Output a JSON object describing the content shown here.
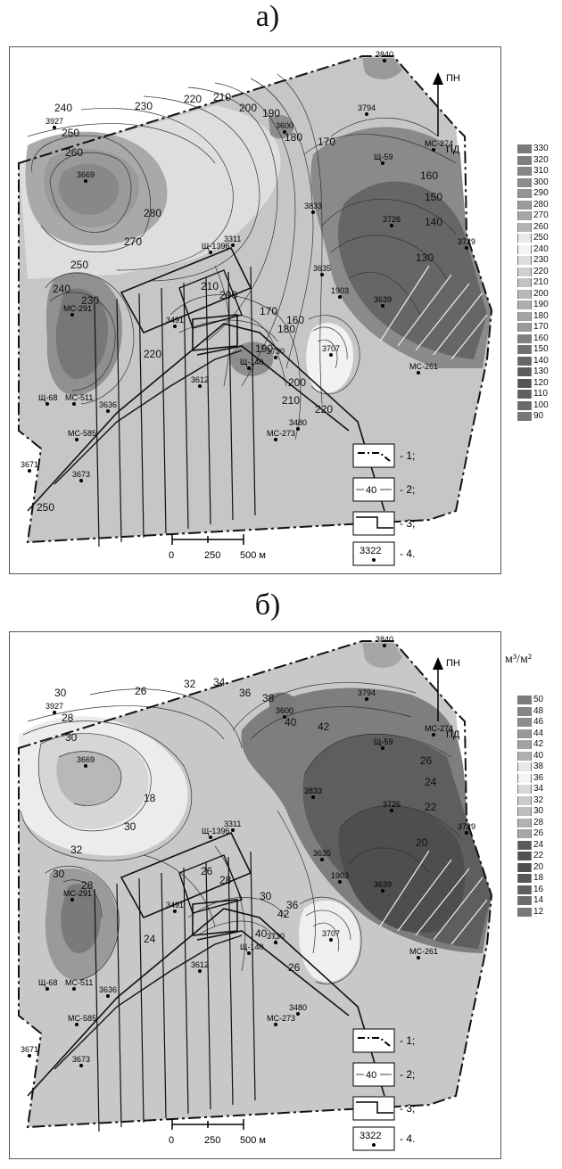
{
  "maps": [
    {
      "heading": "а)",
      "north": "ПН",
      "south": "ПД",
      "scale_bar": {
        "ticks": [
          "0",
          "250",
          "500 м"
        ]
      },
      "legend": [
        {
          "sample": "",
          "text": "- 1;"
        },
        {
          "sample": "40",
          "text": "- 2;"
        },
        {
          "sample": "",
          "text": "- 3;"
        },
        {
          "sample": "3322",
          "text": "- 4."
        }
      ],
      "wells": [
        "3840",
        "3794",
        "МС-274",
        "3927",
        "3600",
        "Щ-59",
        "3669",
        "3833",
        "3726",
        "3729",
        "Щ-1396",
        "3311",
        "3635",
        "1903",
        "3639",
        "МС-291",
        "3491",
        "3707",
        "3730",
        "Щ-140",
        "3612",
        "МС-261",
        "Щ-68",
        "МС-511",
        "3636",
        "3480",
        "МС-585",
        "МС-273",
        "3671",
        "3673"
      ],
      "contour_labels": [
        "240",
        "250",
        "260",
        "230",
        "220",
        "210",
        "200",
        "190",
        "180",
        "170",
        "160",
        "150",
        "140",
        "130",
        "280",
        "270",
        "250",
        "240",
        "230",
        "220",
        "210",
        "200",
        "170",
        "160",
        "190",
        "180",
        "200",
        "210",
        "220",
        "250"
      ],
      "colorbar": {
        "unit": "",
        "levels": [
          "330",
          "320",
          "310",
          "300",
          "290",
          "280",
          "270",
          "260",
          "250",
          "240",
          "230",
          "220",
          "210",
          "200",
          "190",
          "180",
          "170",
          "160",
          "150",
          "140",
          "130",
          "120",
          "110",
          "100",
          "90"
        ],
        "colors": [
          "#7a7a7a",
          "#808080",
          "#868686",
          "#8d8d8d",
          "#949494",
          "#9c9c9c",
          "#a6a6a6",
          "#b4b4b4",
          "#e9e9e9",
          "#f4f4f4",
          "#dcdcdc",
          "#cfcfcf",
          "#c3c3c3",
          "#b8b8b8",
          "#aeaeae",
          "#a4a4a4",
          "#9a9a9a",
          "#808080",
          "#707070",
          "#666666",
          "#5c5c5c",
          "#545454",
          "#5e5e5e",
          "#6a6a6a",
          "#777777"
        ]
      }
    },
    {
      "heading": "б)",
      "north": "ПН",
      "south": "ПД",
      "scale_bar": {
        "ticks": [
          "0",
          "250",
          "500 м"
        ]
      },
      "legend": [
        {
          "sample": "",
          "text": "- 1;"
        },
        {
          "sample": "40",
          "text": "- 2;"
        },
        {
          "sample": "",
          "text": "- 3;"
        },
        {
          "sample": "3322",
          "text": "- 4."
        }
      ],
      "wells": [
        "3840",
        "3794",
        "МС-274",
        "3927",
        "3600",
        "Щ-59",
        "3669",
        "3833",
        "3726",
        "3729",
        "Щ-1396",
        "3311",
        "3635",
        "1903",
        "3639",
        "МС-291",
        "3491",
        "3707",
        "3730",
        "Щ-140",
        "3612",
        "МС-261",
        "Щ-68",
        "МС-511",
        "3636",
        "3480",
        "МС-585",
        "МС-273",
        "3671",
        "3673"
      ],
      "contour_labels": [
        "30",
        "28",
        "30",
        "26",
        "32",
        "34",
        "36",
        "38",
        "40",
        "42",
        "26",
        "24",
        "22",
        "20",
        "18",
        "30",
        "32",
        "30",
        "28",
        "24",
        "26",
        "28",
        "30",
        "36",
        "40",
        "42",
        "26"
      ],
      "colorbar": {
        "unit": "м³/м²",
        "levels": [
          "50",
          "48",
          "46",
          "44",
          "42",
          "40",
          "38",
          "36",
          "34",
          "32",
          "30",
          "28",
          "26",
          "24",
          "22",
          "20",
          "18",
          "16",
          "14",
          "12"
        ],
        "colors": [
          "#7c7c7c",
          "#868686",
          "#8e8e8e",
          "#989898",
          "#a2a2a2",
          "#b0b0b0",
          "#e8e8e8",
          "#f4f4f4",
          "#d8d8d8",
          "#cbcbcb",
          "#bebebe",
          "#b2b2b2",
          "#a6a6a6",
          "#5a5a5a",
          "#525252",
          "#4e4e4e",
          "#565656",
          "#606060",
          "#6c6c6c",
          "#787878"
        ]
      }
    }
  ]
}
